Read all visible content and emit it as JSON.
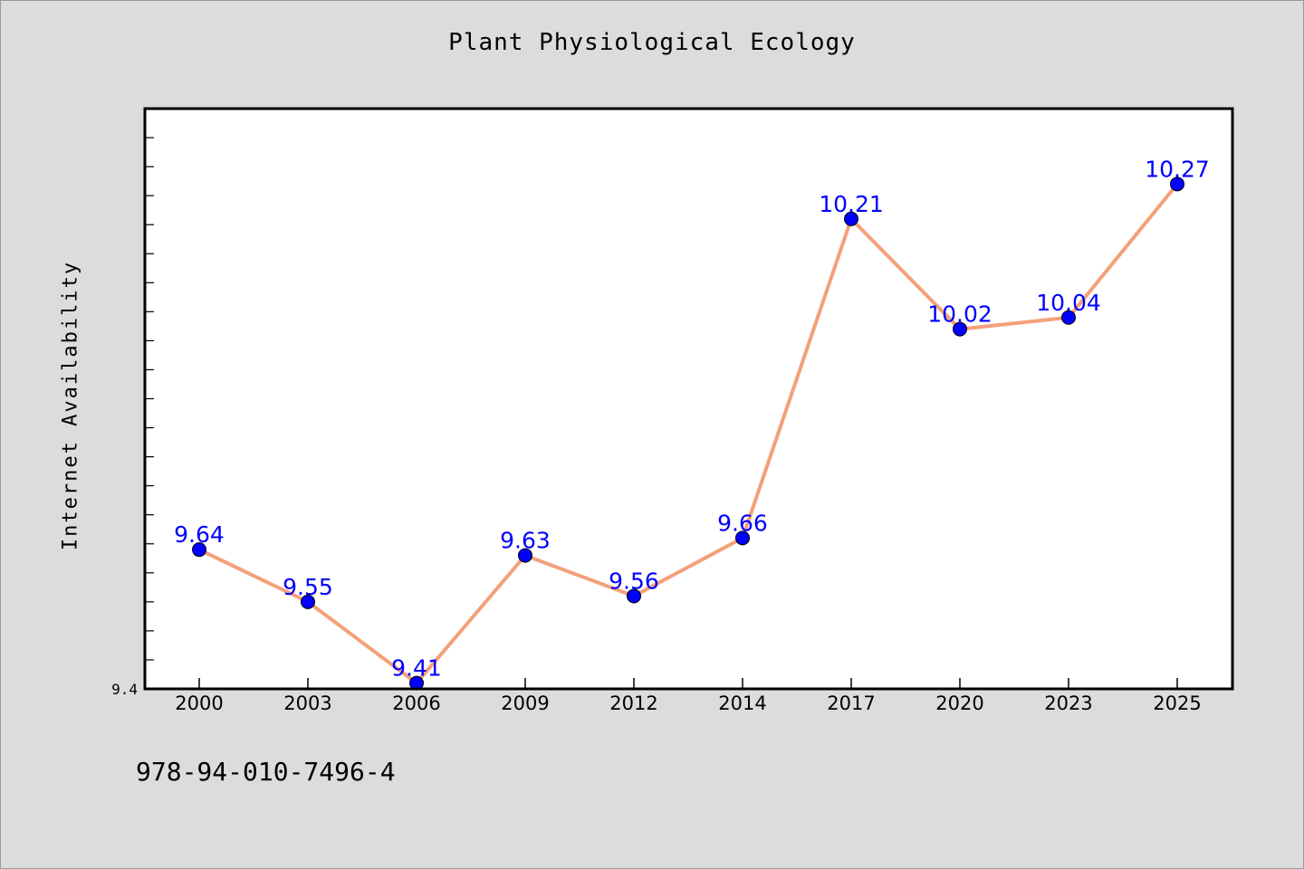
{
  "title": "Plant Physiological Ecology",
  "isbn": "978-94-010-7496-4",
  "colors": {
    "background": "#dcdcdc",
    "plot_background": "#ffffff",
    "line": "#f4a07a",
    "marker": "#0000ff",
    "data_label": "#0000ff"
  },
  "chart_data": {
    "type": "line",
    "title": "Plant Physiological Ecology",
    "xlabel": "",
    "ylabel": "Internet Availability",
    "categories": [
      "2000",
      "2003",
      "2006",
      "2009",
      "2012",
      "2014",
      "2017",
      "2020",
      "2023",
      "2025"
    ],
    "series": [
      {
        "values": [
          9.64,
          9.55,
          9.41,
          9.63,
          9.56,
          9.66,
          10.21,
          10.02,
          10.04,
          10.27
        ]
      }
    ],
    "data_labels": [
      "9.64",
      "9.55",
      "9.41",
      "9.63",
      "9.56",
      "9.66",
      "10.21",
      "10.02",
      "10.04",
      "10.27"
    ],
    "yticks_labeled": [
      "9.4"
    ],
    "ylim": [
      9.4,
      10.4
    ],
    "grid": false,
    "legend": "none"
  }
}
